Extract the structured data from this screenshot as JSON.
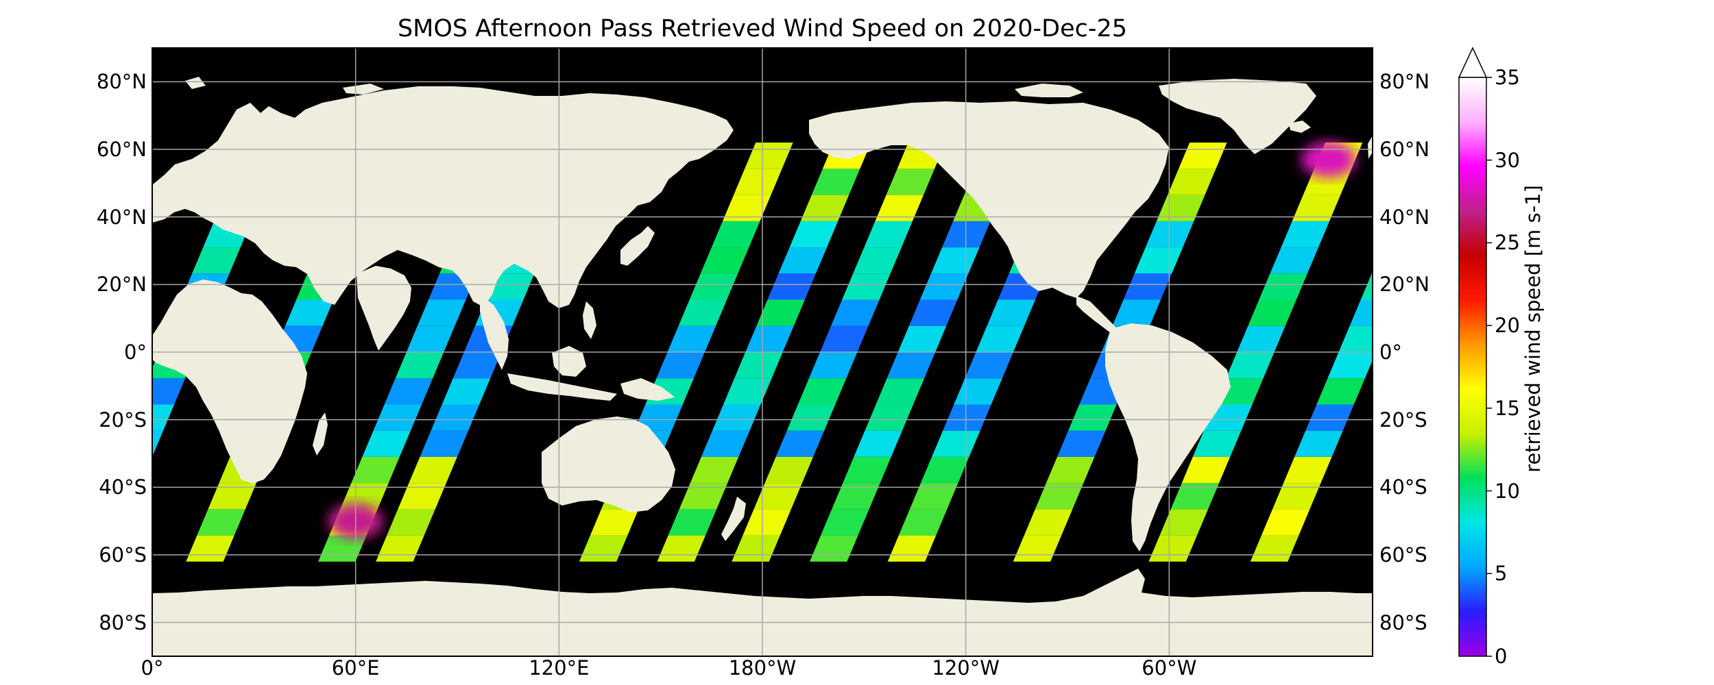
{
  "title": "SMOS Afternoon Pass Retrieved Wind Speed on 2020-Dec-25",
  "axes": {
    "lat_labels": [
      "80°N",
      "60°N",
      "40°N",
      "20°N",
      "0°",
      "20°S",
      "40°S",
      "60°S",
      "80°S"
    ],
    "lon_labels": [
      "0°",
      "60°E",
      "120°E",
      "180°W",
      "120°W",
      "60°W"
    ]
  },
  "colorbar": {
    "label": "retrieved wind speed [m s-1]",
    "ticks": [
      "35",
      "30",
      "25",
      "20",
      "15",
      "10",
      "5",
      "0"
    ],
    "range": [
      0,
      35
    ],
    "extend": "max",
    "colors": [
      "#9b00e6",
      "#2a1cff",
      "#00a8ff",
      "#00e6e6",
      "#00e05a",
      "#c8f000",
      "#ffff00",
      "#ff9900",
      "#ff1a00",
      "#c40000",
      "#c0208c",
      "#ff00ff",
      "#ffb0ff",
      "#ffffff"
    ]
  },
  "map_colors": {
    "ocean": "#000000",
    "land": "#efedde",
    "grid": "#a8a8a8"
  },
  "chart_data": {
    "type": "heatmap",
    "title": "SMOS Afternoon Pass Retrieved Wind Speed on 2020-Dec-25",
    "projection": "PlateCarree, central longitude 0°E",
    "xlim": [
      0,
      360
    ],
    "ylim": [
      -90,
      90
    ],
    "colorbar_label": "retrieved wind speed [m s-1]",
    "colorbar_range": [
      0,
      35
    ],
    "swaths_approx_lon_at_equator": [
      2,
      36,
      75,
      92,
      152,
      175,
      197,
      220,
      243,
      280,
      320,
      350
    ],
    "notable_values": [
      {
        "region": "North Atlantic off Greenland",
        "wind_speed": 28
      },
      {
        "region": "Southern Indian Ocean near 55°S 60°E",
        "wind_speed": 27
      }
    ]
  }
}
